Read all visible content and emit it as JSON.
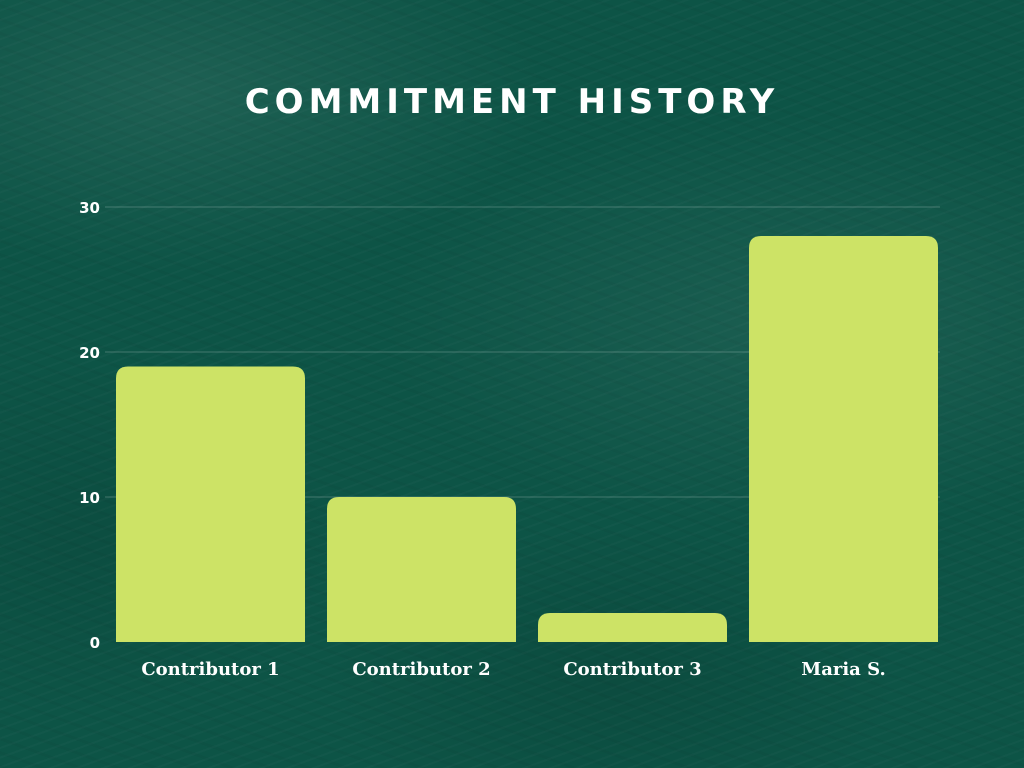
{
  "chart_data": {
    "type": "bar",
    "title": "COMMITMENT HISTORY",
    "categories": [
      "Contributor 1",
      "Contributor 2",
      "Contributor 3",
      "Maria S."
    ],
    "values": [
      19,
      10,
      2,
      28
    ],
    "ylim": [
      0,
      30
    ],
    "yticks": [
      0,
      10,
      20,
      30
    ],
    "xlabel": "",
    "ylabel": "",
    "grid": true,
    "legend": "none",
    "colors": {
      "bar": "#cde366",
      "background": "#0d5446",
      "text": "#ffffff"
    }
  }
}
